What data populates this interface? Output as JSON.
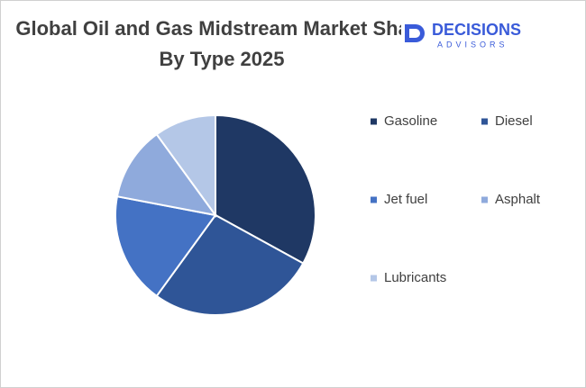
{
  "chart_data": {
    "type": "pie",
    "title": "Global Oil and Gas Midstream Market Share By Type 2025",
    "categories": [
      "Gasoline",
      "Diesel",
      "Jet fuel",
      "Asphalt",
      "Lubricants"
    ],
    "values": [
      33,
      27,
      18,
      12,
      10
    ],
    "colors": [
      "#1f3864",
      "#2f5597",
      "#4472c4",
      "#8faadc",
      "#b4c7e7"
    ],
    "legend": "right"
  },
  "logo": {
    "name": "DECISIONS",
    "tagline": "ADVISORS"
  }
}
